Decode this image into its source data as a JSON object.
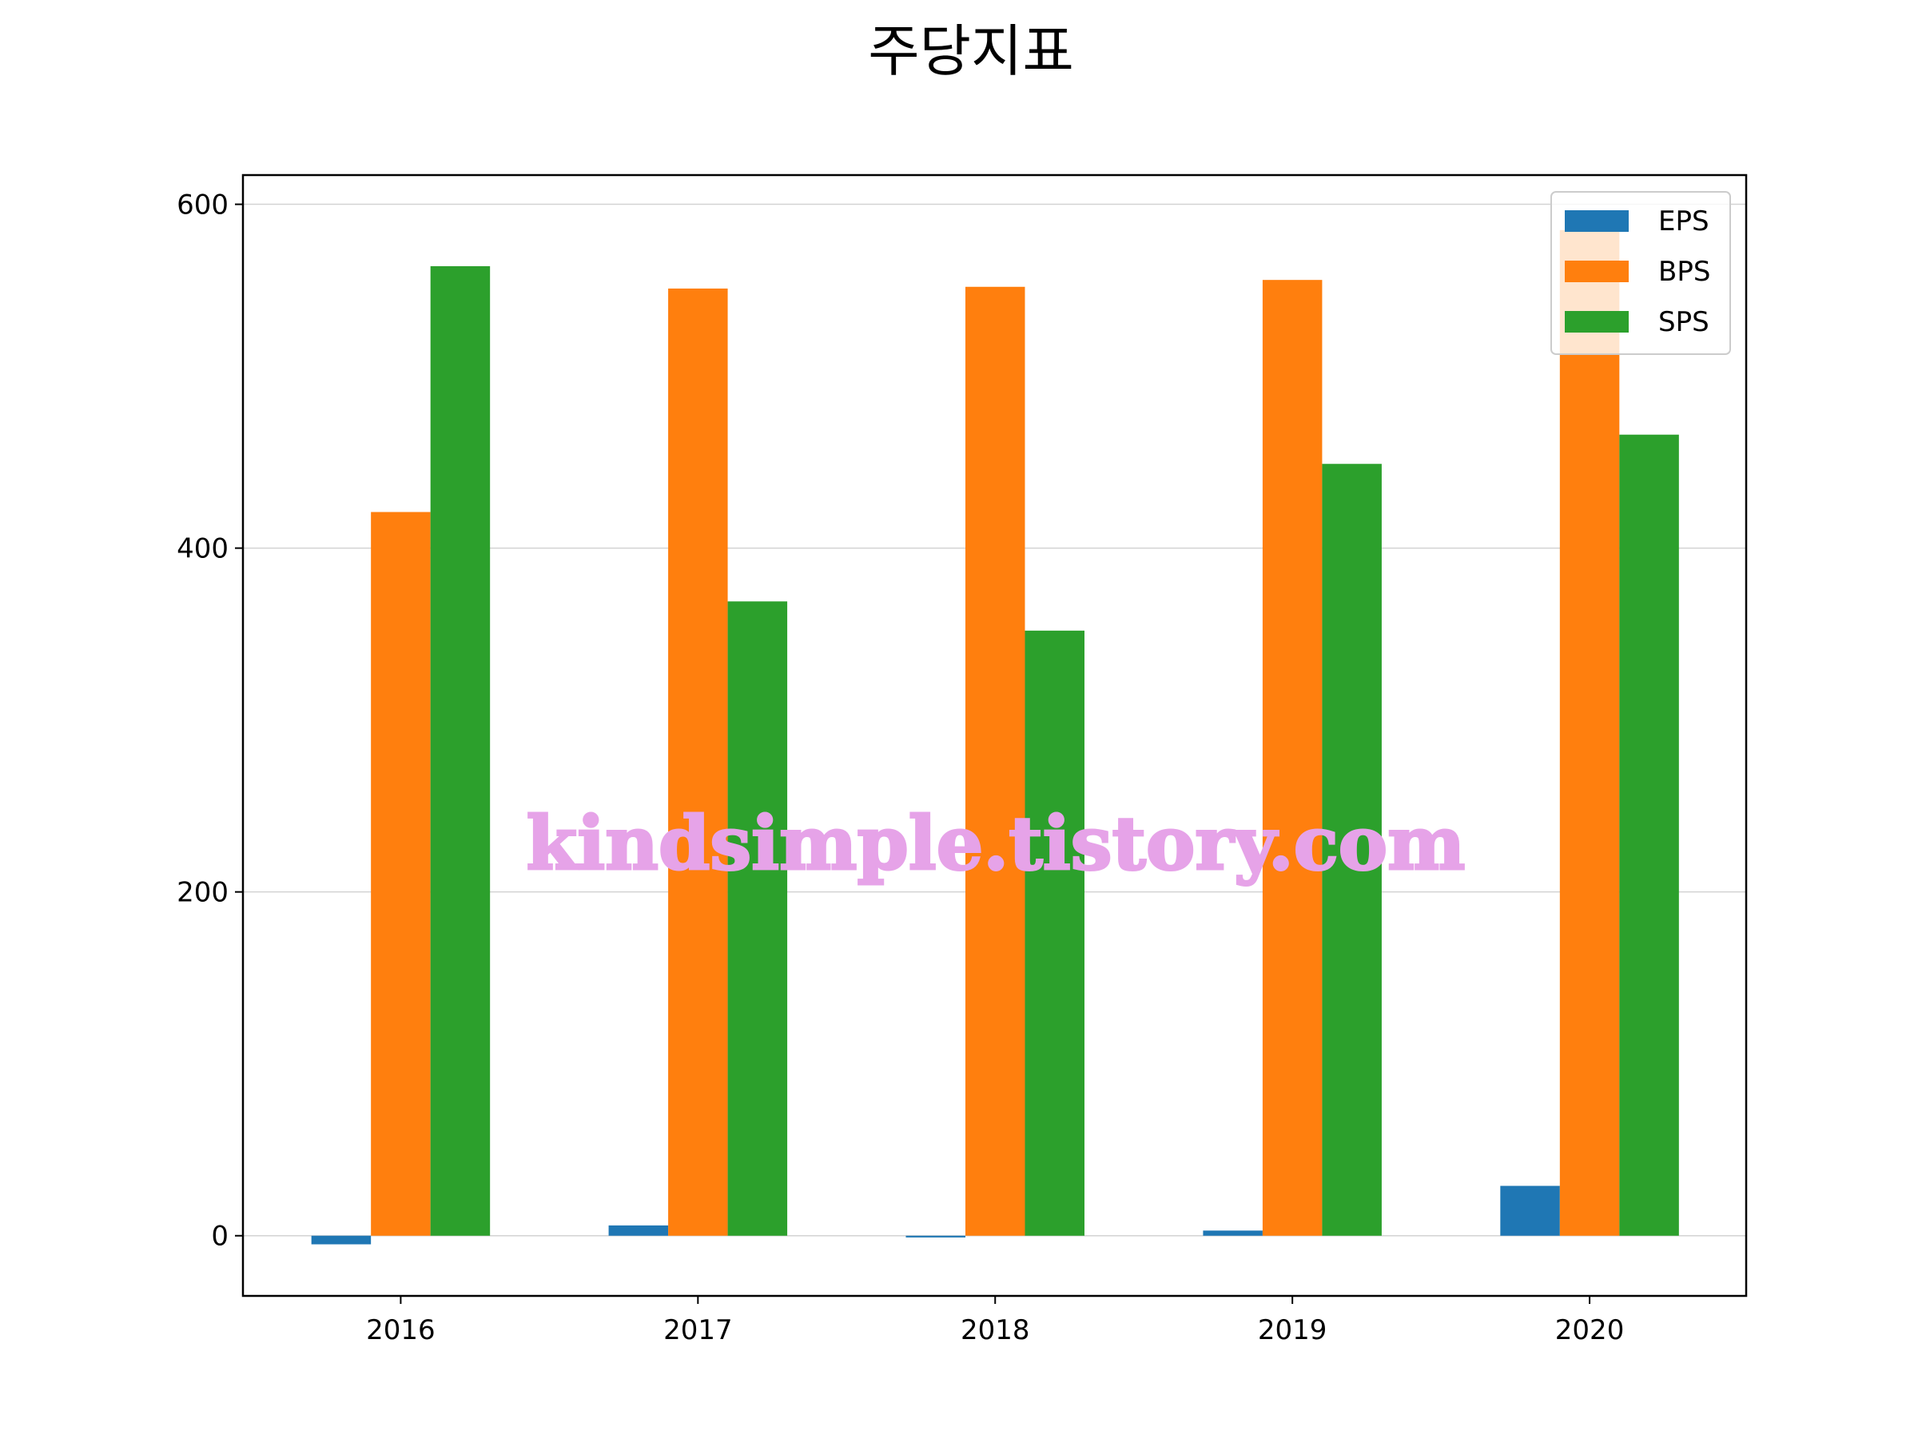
{
  "chart_data": {
    "type": "bar",
    "title": "주당지표",
    "categories": [
      "2016",
      "2017",
      "2018",
      "2019",
      "2020"
    ],
    "series": [
      {
        "name": "EPS",
        "color": "#1f77b4",
        "values": [
          -5,
          6,
          -1,
          3,
          29
        ]
      },
      {
        "name": "BPS",
        "color": "#ff7f0e",
        "values": [
          421,
          551,
          552,
          556,
          585
        ]
      },
      {
        "name": "SPS",
        "color": "#2ca02c",
        "values": [
          564,
          369,
          352,
          449,
          466
        ]
      }
    ],
    "ylim": [
      -35,
      617
    ],
    "yticks": [
      "0",
      "200",
      "400",
      "600"
    ],
    "grid": "horizontal",
    "legend_position": "top-right",
    "xlabel": "",
    "ylabel": ""
  },
  "watermark": {
    "text": "kindsimple.tistory.com",
    "color": "#e6a3e8"
  }
}
